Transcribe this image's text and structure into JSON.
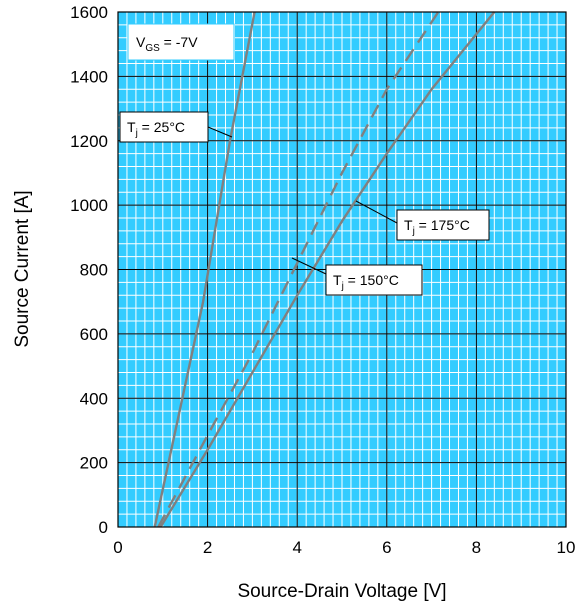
{
  "chart_data": {
    "type": "line",
    "title": "",
    "xlabel": "Source-Drain Voltage [V]",
    "ylabel": "Source Current [A]",
    "xlim": [
      0,
      10
    ],
    "ylim": [
      0,
      1600
    ],
    "xticks": [
      "0",
      "2",
      "4",
      "6",
      "8",
      "10"
    ],
    "yticks": [
      "0",
      "200",
      "400",
      "600",
      "800",
      "1000",
      "1200",
      "1400",
      "1600"
    ],
    "grid": true,
    "minor_grid": true,
    "plot_background": "#33ccff",
    "line_color": "#808080",
    "condition_label": {
      "main": "V",
      "sub": "GS",
      "rest": " = -7V"
    },
    "series": [
      {
        "name": "Tj = 25°C",
        "label": {
          "main": "T",
          "sub": "j",
          "rest": " = 25°C"
        },
        "style": "solid",
        "x": [
          0.82,
          1.9,
          2.5,
          3.05
        ],
        "y": [
          0,
          700,
          1200,
          1600
        ]
      },
      {
        "name": "Tj = 150°C",
        "label": {
          "main": "T",
          "sub": "j",
          "rest": " = 150°C"
        },
        "style": "dashed",
        "x": [
          0.9,
          2.0,
          3.0,
          4.0,
          5.0,
          6.0,
          7.15
        ],
        "y": [
          0,
          285,
          540,
          820,
          1100,
          1360,
          1600
        ]
      },
      {
        "name": "Tj = 175°C",
        "label": {
          "main": "T",
          "sub": "j",
          "rest": " = 175°C"
        },
        "style": "solid",
        "x": [
          0.95,
          2.0,
          3.0,
          4.0,
          5.0,
          6.0,
          7.0,
          8.4
        ],
        "y": [
          0,
          240,
          480,
          720,
          950,
          1160,
          1360,
          1600
        ]
      }
    ]
  }
}
